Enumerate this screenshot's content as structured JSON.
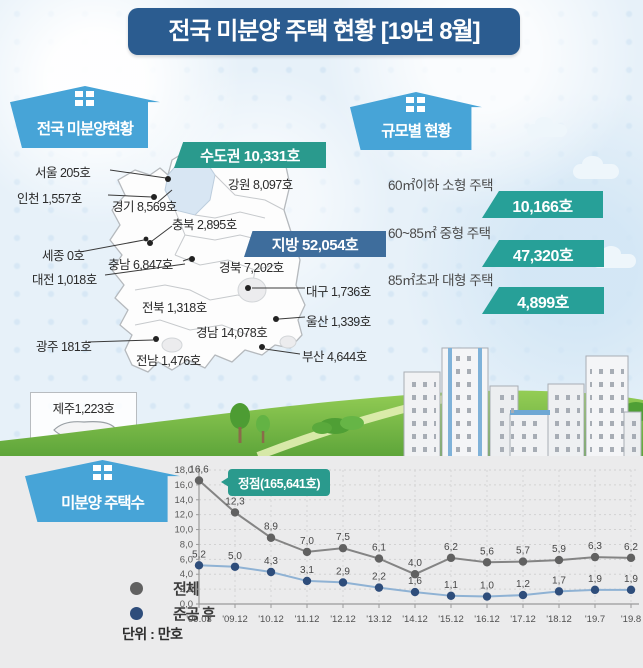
{
  "title": "전국 미분양 주택 현황 [19년 8월]",
  "map_section": {
    "header": "전국 미분양현황",
    "sudogwon_banner": "수도권 10,331호",
    "jibang_banner": "지방 52,054호",
    "regions": [
      {
        "label": "서울  205호"
      },
      {
        "label": "인천 1,557호"
      },
      {
        "label": "강원 8,097호"
      },
      {
        "label": "경기 8,569호"
      },
      {
        "label": "충북 2,895호"
      },
      {
        "label": "세종 0호"
      },
      {
        "label": "충남 6,847호"
      },
      {
        "label": "대전 1,018호"
      },
      {
        "label": "경북 7,202호"
      },
      {
        "label": "대구 1,736호"
      },
      {
        "label": "전북 1,318호"
      },
      {
        "label": "울산 1,339호"
      },
      {
        "label": "경남 14,078호"
      },
      {
        "label": "광주 181호"
      },
      {
        "label": "전남 1,476호"
      },
      {
        "label": "부산 4,644호"
      }
    ],
    "jeju_label": "제주1,223호"
  },
  "size_section": {
    "header": "규모별 현황",
    "items": [
      {
        "label": "60㎡이하 소형 주택",
        "value": "10,166호"
      },
      {
        "label": "60~85㎡ 중형 주택",
        "value": "47,320호"
      },
      {
        "label": "85㎡초과 대형 주택",
        "value": "4,899호"
      }
    ]
  },
  "chart_section": {
    "header": "미분양 주택수",
    "unit": "단위 : 만호",
    "peak_callout": "정점(165,641호)"
  },
  "chart_data": {
    "type": "line",
    "title": "미분양 주택수",
    "unit": "만호",
    "categories": [
      "'09.03",
      "'09.12",
      "'10.12",
      "'11.12",
      "'12.12",
      "'13.12",
      "'14.12",
      "'15.12",
      "'16.12",
      "'17.12",
      "'18.12",
      "'19.7",
      "'19.8"
    ],
    "series": [
      {
        "name": "전체",
        "color": "#848484",
        "dot": "#616161",
        "values": [
          16.6,
          12.3,
          8.9,
          7.0,
          7.5,
          6.1,
          4.0,
          6.2,
          5.6,
          5.7,
          5.9,
          6.3,
          6.2
        ]
      },
      {
        "name": "준공 후",
        "color": "#8fb2d4",
        "dot": "#2e4d7b",
        "values": [
          5.2,
          5.0,
          4.3,
          3.1,
          2.9,
          2.2,
          1.6,
          1.1,
          1.0,
          1.2,
          1.7,
          1.9,
          1.9
        ]
      }
    ],
    "ylim": [
      0,
      18
    ],
    "ytick_step": 2,
    "decimal_separator": ",",
    "grid": true,
    "legend_position": "left",
    "annotations": [
      {
        "text": "정점(165,641호)",
        "at": {
          "series": "전체",
          "index": 0
        }
      }
    ]
  },
  "colors": {
    "title_bg": "#2b5c90",
    "house_icon": "#47a4d7",
    "banner_teal": "#2a9a8d",
    "banner_blue": "#3e6d9c",
    "size_banner": "#27a098",
    "callout_bg": "#2a9a8d",
    "series_total_line": "#848484",
    "series_total_dot": "#616161",
    "series_after_line": "#8fb2d4",
    "series_after_dot": "#2e4d7b",
    "panel_bg": "#ebebec",
    "sky_bg": "#e7f1f9",
    "grass": "#7cbc45"
  }
}
